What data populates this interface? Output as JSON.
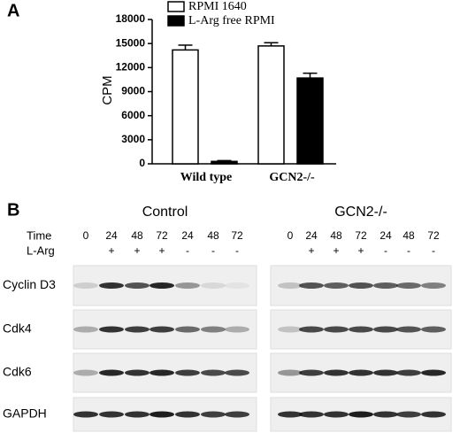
{
  "chart_data": {
    "type": "bar",
    "panel_label": "A",
    "y_label": "CPM",
    "categories": [
      "Wild type",
      "GCN2-/-"
    ],
    "series": [
      {
        "name": "RPMI 1640",
        "color": "#ffffff",
        "values": [
          14200,
          14700
        ],
        "errors": [
          600,
          400
        ]
      },
      {
        "name": "L-Arg free RPMI",
        "color": "#000000",
        "values": [
          300,
          10700
        ],
        "errors": [
          100,
          600
        ]
      }
    ],
    "ylim": [
      0,
      18000
    ],
    "yticks": [
      0,
      3000,
      6000,
      9000,
      12000,
      15000,
      18000
    ]
  },
  "blot": {
    "panel_label": "B",
    "time_label": "Time",
    "larg_label": "L-Arg",
    "groups": [
      {
        "name": "Control",
        "times": [
          "0",
          "24",
          "48",
          "72",
          "24",
          "48",
          "72"
        ],
        "larg": [
          null,
          "+",
          "+",
          "+",
          "-",
          "-",
          "-"
        ]
      },
      {
        "name": "GCN2-/-",
        "times": [
          "0",
          "24",
          "48",
          "72",
          "24",
          "48",
          "72"
        ],
        "larg": [
          null,
          "+",
          "+",
          "+",
          "-",
          "-",
          "-"
        ]
      }
    ],
    "rows": [
      "Cyclin D3",
      "Cdk4",
      "Cdk6",
      "GAPDH"
    ]
  }
}
